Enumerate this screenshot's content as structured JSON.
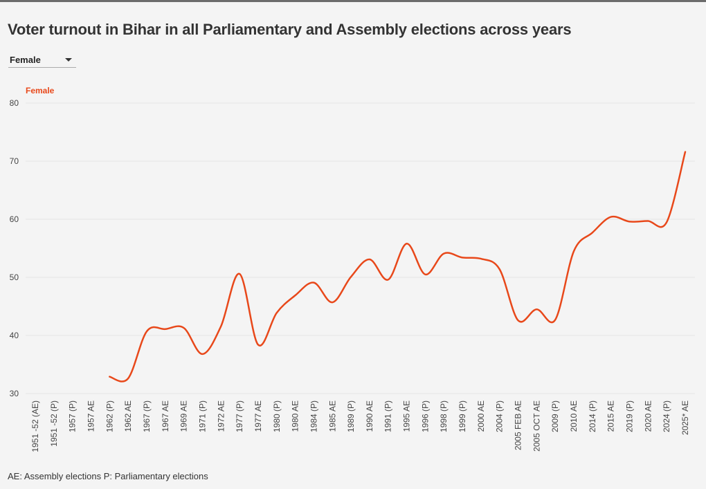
{
  "header": {
    "title": "Voter turnout in Bihar in all Parliamentary and Assembly elections across years"
  },
  "filter": {
    "selected": "Female"
  },
  "footnote": "AE: Assembly elections P: Parliamentary elections",
  "colors": {
    "series": "#e8481a",
    "grid": "#e4e4e4",
    "text": "#333333"
  },
  "chart_data": {
    "type": "line",
    "title": "Voter turnout in Bihar in all Parliamentary and Assembly elections across years",
    "xlabel": "",
    "ylabel": "",
    "ylim": [
      30,
      80
    ],
    "yticks": [
      30,
      40,
      50,
      60,
      70,
      80
    ],
    "grid": true,
    "legend": "top-left",
    "categories": [
      "1951 -52 (AE)",
      "1951 -52 (P)",
      "1957 (P)",
      "1957 AE",
      "1962 (P)",
      "1962 AE",
      "1967 (P)",
      "1967 AE",
      "1969 AE",
      "1971 (P)",
      "1972 AE",
      "1977 (P)",
      "1977 AE",
      "1980 (P)",
      "1980 AE",
      "1984 (P)",
      "1985 AE",
      "1989 (P)",
      "1990 AE",
      "1991 (P)",
      "1995 AE",
      "1996 (P)",
      "1998 (P)",
      "1999 (P)",
      "2000 AE",
      "2004 (P)",
      "2005 FEB AE",
      "2005 OCT AE",
      "2009 (P)",
      "2010 AE",
      "2014 (P)",
      "2015 AE",
      "2019 (P)",
      "2020 AE",
      "2024 (P)",
      "2025* AE"
    ],
    "series": [
      {
        "name": "Female",
        "values": [
          null,
          null,
          null,
          null,
          32.9,
          32.6,
          40.7,
          41.1,
          41.3,
          36.8,
          41.6,
          50.6,
          38.4,
          43.9,
          46.9,
          49.1,
          45.7,
          50.1,
          53.1,
          49.6,
          55.8,
          50.5,
          54.1,
          53.4,
          53.2,
          51.4,
          42.6,
          44.5,
          42.7,
          54.5,
          57.7,
          60.4,
          59.6,
          59.7,
          59.5,
          71.6
        ]
      }
    ]
  }
}
